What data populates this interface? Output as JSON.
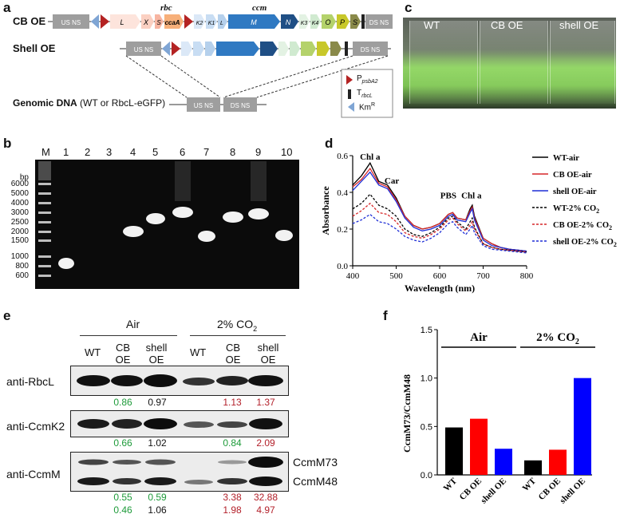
{
  "panels": {
    "a": "a",
    "b": "b",
    "c": "c",
    "d": "d",
    "e": "e",
    "f": "f"
  },
  "panel_a": {
    "row_labels": {
      "cb_oe": "CB OE",
      "shell_oe": "Shell OE",
      "genomic": "Genomic DNA",
      "genomic_suffix": "(WT or RbcL-eGFP)"
    },
    "gene_group_labels": {
      "rbc": "rbc",
      "ccm": "ccm"
    },
    "genes": {
      "us_ns": "US NS",
      "ds_ns": "DS NS",
      "L": "L",
      "X": "X",
      "S": "S",
      "ccaA": "ccaA",
      "K2": "K2",
      "K1": "K1",
      "L2": "L",
      "M": "M",
      "N": "N",
      "K3": "K3",
      "K4": "K4",
      "O": "O",
      "P": "P",
      "S2": "S"
    },
    "legend": {
      "p_psba2": "P",
      "p_psba2_sub": "psbA2",
      "t_rbcl": "T",
      "t_rbcl_sub": "rbcL",
      "kmr": "Km",
      "kmr_sup": "R"
    }
  },
  "panel_c": {
    "labels": [
      "WT",
      "CB OE",
      "shell OE"
    ]
  },
  "panel_b": {
    "lanes": [
      "M",
      "1",
      "2",
      "3",
      "4",
      "5",
      "6",
      "7",
      "8",
      "9",
      "10"
    ],
    "bp_unit": "bp",
    "bp_marks": [
      "6000",
      "5000",
      "4000",
      "3000",
      "2500",
      "2000",
      "1500",
      "1000",
      "800",
      "600"
    ]
  },
  "panel_d": {
    "chart_data": {
      "type": "line",
      "xlabel": "Wavelength (nm)",
      "ylabel": "Absorbance",
      "xlim": [
        400,
        800
      ],
      "ylim": [
        0,
        0.6
      ],
      "xticks": [
        "400",
        "500",
        "600",
        "700",
        "800"
      ],
      "yticks": [
        "0.0",
        "0.2",
        "0.4",
        "0.6"
      ],
      "annotations": [
        {
          "text": "Chl a",
          "x": 440,
          "y": 0.56
        },
        {
          "text": "Car",
          "x": 490,
          "y": 0.43
        },
        {
          "text": "PBS",
          "x": 620,
          "y": 0.35
        },
        {
          "text": "Chl a",
          "x": 673,
          "y": 0.35
        }
      ],
      "legend_position": "right",
      "x": [
        400,
        420,
        440,
        460,
        480,
        500,
        520,
        540,
        560,
        580,
        600,
        620,
        630,
        640,
        660,
        670,
        675,
        680,
        700,
        720,
        740,
        760,
        780,
        800
      ],
      "series": [
        {
          "name": "WT-air",
          "color": "#000000",
          "dash": false,
          "values": [
            0.44,
            0.49,
            0.56,
            0.46,
            0.44,
            0.37,
            0.27,
            0.22,
            0.2,
            0.21,
            0.23,
            0.28,
            0.29,
            0.26,
            0.25,
            0.31,
            0.33,
            0.27,
            0.15,
            0.12,
            0.1,
            0.09,
            0.085,
            0.08
          ]
        },
        {
          "name": "CB OE-air",
          "color": "#d62728",
          "dash": false,
          "values": [
            0.43,
            0.47,
            0.53,
            0.45,
            0.43,
            0.36,
            0.27,
            0.22,
            0.2,
            0.21,
            0.23,
            0.28,
            0.29,
            0.26,
            0.25,
            0.3,
            0.32,
            0.26,
            0.15,
            0.12,
            0.1,
            0.09,
            0.085,
            0.08
          ]
        },
        {
          "name": "shell OE-air",
          "color": "#1f2fd6",
          "dash": false,
          "values": [
            0.41,
            0.46,
            0.51,
            0.44,
            0.42,
            0.35,
            0.26,
            0.21,
            0.19,
            0.2,
            0.22,
            0.27,
            0.28,
            0.25,
            0.24,
            0.29,
            0.31,
            0.25,
            0.14,
            0.11,
            0.1,
            0.09,
            0.085,
            0.08
          ]
        },
        {
          "name": "WT-2% CO2",
          "color": "#000000",
          "dash": true,
          "values": [
            0.31,
            0.34,
            0.39,
            0.33,
            0.31,
            0.27,
            0.2,
            0.17,
            0.16,
            0.18,
            0.21,
            0.26,
            0.27,
            0.24,
            0.2,
            0.24,
            0.26,
            0.21,
            0.12,
            0.1,
            0.09,
            0.085,
            0.08,
            0.075
          ]
        },
        {
          "name": "CB OE-2% CO2",
          "color": "#d62728",
          "dash": true,
          "values": [
            0.27,
            0.3,
            0.34,
            0.29,
            0.28,
            0.24,
            0.18,
            0.16,
            0.15,
            0.17,
            0.2,
            0.25,
            0.26,
            0.23,
            0.19,
            0.22,
            0.24,
            0.2,
            0.12,
            0.1,
            0.09,
            0.085,
            0.08,
            0.075
          ]
        },
        {
          "name": "shell OE-2% CO2",
          "color": "#1f2fd6",
          "dash": true,
          "values": [
            0.23,
            0.25,
            0.28,
            0.24,
            0.23,
            0.2,
            0.16,
            0.14,
            0.13,
            0.15,
            0.18,
            0.23,
            0.24,
            0.21,
            0.17,
            0.2,
            0.22,
            0.18,
            0.11,
            0.09,
            0.085,
            0.08,
            0.075,
            0.07
          ]
        }
      ]
    },
    "legend_display": [
      {
        "base": "WT-air",
        "sub": ""
      },
      {
        "base": "CB OE-air",
        "sub": ""
      },
      {
        "base": "shell OE-air",
        "sub": ""
      },
      {
        "base": "WT-2% CO",
        "sub": "2"
      },
      {
        "base": "CB OE-2% CO",
        "sub": "2"
      },
      {
        "base": "shell OE-2% CO",
        "sub": "2"
      }
    ]
  },
  "panel_e": {
    "group_air": "Air",
    "group_co2_base": "2% CO",
    "group_co2_sub": "2",
    "cols": [
      "WT",
      "CB\nOE",
      "shell\nOE",
      "WT",
      "CB\nOE",
      "shell\nOE"
    ],
    "col_labels": {
      "c1": "WT",
      "c2a": "CB",
      "c2b": "OE",
      "c3a": "shell",
      "c3b": "OE",
      "c4": "WT",
      "c5a": "CB",
      "c5b": "OE",
      "c6a": "shell",
      "c6b": "OE"
    },
    "blots": {
      "rbcl": "anti-RbcL",
      "ccmk2": "anti-CcmK2",
      "ccmm": "anti-CcmM"
    },
    "ccmm_bands": {
      "m73": "CcmM73",
      "m48": "CcmM48"
    },
    "values": {
      "rbcl": {
        "cb_air": "0.86",
        "shell_air": "0.97",
        "cb_co2": "1.13",
        "shell_co2": "1.37"
      },
      "ccmk2": {
        "cb_air": "0.66",
        "shell_air": "1.02",
        "cb_co2": "0.84",
        "shell_co2": "2.09"
      },
      "m73": {
        "cb_air": "0.55",
        "shell_air": "0.59",
        "cb_co2": "3.38",
        "shell_co2": "32.88"
      },
      "m48": {
        "cb_air": "0.46",
        "shell_air": "1.06",
        "cb_co2": "1.98",
        "shell_co2": "4.97"
      }
    }
  },
  "panel_f": {
    "chart_data": {
      "type": "bar",
      "ylabel": "CcmM73/CcmM48",
      "ylim": [
        0,
        1.5
      ],
      "yticks": [
        "0.0",
        "0.5",
        "1.0",
        "1.5"
      ],
      "group_labels": [
        "Air",
        "2% CO2"
      ],
      "categories": [
        "WT",
        "CB OE",
        "shell OE",
        "WT",
        "CB OE",
        "shell OE"
      ],
      "values": [
        0.49,
        0.58,
        0.27,
        0.15,
        0.26,
        1.0
      ],
      "colors": [
        "#000000",
        "#ff0000",
        "#0000ff",
        "#000000",
        "#ff0000",
        "#0000ff"
      ]
    },
    "group_air": "Air",
    "group_co2_base": "2% CO",
    "group_co2_sub": "2"
  }
}
